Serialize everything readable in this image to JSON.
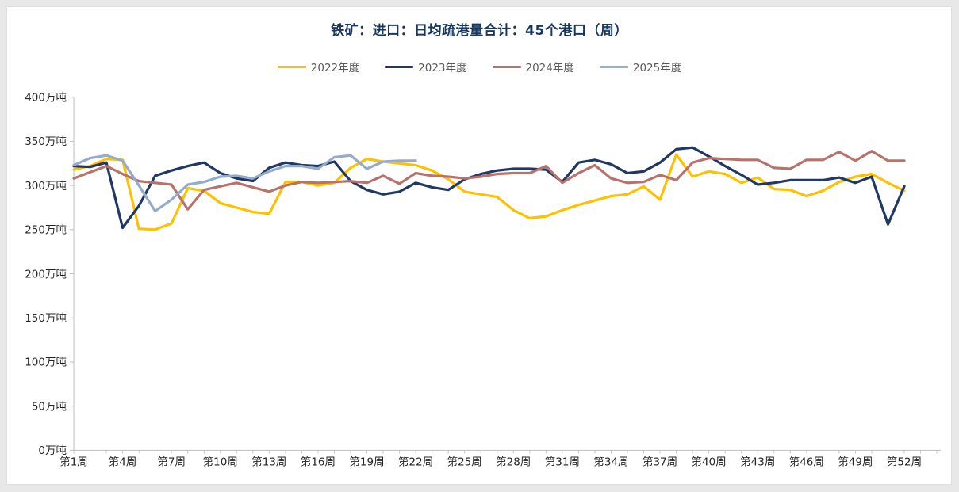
{
  "header": {
    "title": "铁矿：进口：日均疏港量合计：45个港口（周）",
    "title_color": "#17375e"
  },
  "legend": {
    "text_color": "#595959",
    "position": "top-center"
  },
  "chart_data": {
    "type": "line",
    "title": "铁矿：进口：日均疏港量合计：45个港口（周）",
    "grid": false,
    "background": "#ffffff",
    "axis_color": "#bfbfbf",
    "legend_position": "top",
    "x_axis": {
      "weeks_total": 52,
      "tick_label_every": 3,
      "tick_labels": [
        "第1周",
        "第4周",
        "第7周",
        "第10周",
        "第13周",
        "第16周",
        "第19周",
        "第22周",
        "第25周",
        "第28周",
        "第31周",
        "第34周",
        "第37周",
        "第40周",
        "第43周",
        "第46周",
        "第49周",
        "第52周"
      ]
    },
    "y_axis": {
      "min": 0,
      "max": 400,
      "step": 50,
      "unit": "万吨",
      "tick_labels": [
        "0万吨",
        "50万吨",
        "100万吨",
        "150万吨",
        "200万吨",
        "250万吨",
        "300万吨",
        "350万吨",
        "400万吨"
      ]
    },
    "series": [
      {
        "name": "2022年度",
        "color": "#FFC000",
        "values": [
          318,
          322,
          330,
          329,
          251,
          250,
          257,
          297,
          294,
          280,
          275,
          270,
          268,
          304,
          304,
          300,
          303,
          320,
          330,
          327,
          325,
          323,
          317,
          307,
          293,
          290,
          287,
          272,
          263,
          265,
          272,
          278,
          283,
          288,
          290,
          299,
          284,
          335,
          310,
          316,
          313,
          303,
          309,
          296,
          295,
          288,
          294,
          304,
          310,
          313,
          303,
          294
        ]
      },
      {
        "name": "2023年度",
        "color": "#1F3864",
        "values": [
          322,
          321,
          326,
          252,
          277,
          311,
          317,
          322,
          326,
          314,
          308,
          305,
          320,
          326,
          323,
          322,
          327,
          305,
          295,
          290,
          293,
          303,
          298,
          295,
          307,
          313,
          317,
          319,
          319,
          318,
          304,
          326,
          329,
          324,
          314,
          316,
          326,
          341,
          343,
          333,
          322,
          312,
          301,
          303,
          306,
          306,
          306,
          309,
          303,
          310,
          256,
          299
        ]
      },
      {
        "name": "2024年度",
        "color": "#B7736B",
        "values": [
          308,
          315,
          322,
          313,
          305,
          303,
          301,
          273,
          295,
          299,
          303,
          298,
          293,
          300,
          304,
          303,
          304,
          305,
          303,
          311,
          302,
          314,
          311,
          310,
          308,
          310,
          313,
          314,
          314,
          322,
          303,
          314,
          323,
          308,
          303,
          304,
          312,
          306,
          326,
          331,
          330,
          329,
          329,
          320,
          319,
          329,
          329,
          338,
          328,
          339,
          328,
          328
        ]
      },
      {
        "name": "2025年度",
        "color": "#95ABCB",
        "values": [
          323,
          331,
          334,
          328,
          300,
          271,
          284,
          301,
          304,
          310,
          311,
          308,
          316,
          322,
          322,
          319,
          332,
          334,
          319,
          327,
          328,
          328
        ]
      }
    ]
  }
}
